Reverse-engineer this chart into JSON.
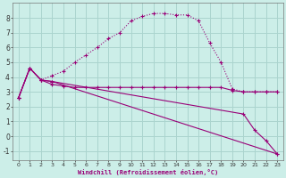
{
  "background_color": "#cceee8",
  "grid_color": "#aad4ce",
  "line_color": "#990077",
  "xlabel": "Windchill (Refroidissement éolien,°C)",
  "xlim": [
    -0.5,
    23.5
  ],
  "ylim": [
    -1.6,
    9.0
  ],
  "yticks": [
    -1,
    0,
    1,
    2,
    3,
    4,
    5,
    6,
    7,
    8
  ],
  "xticks": [
    0,
    1,
    2,
    3,
    4,
    5,
    6,
    7,
    8,
    9,
    10,
    11,
    12,
    13,
    14,
    15,
    16,
    17,
    18,
    19,
    20,
    21,
    22,
    23
  ],
  "line1_x": [
    0,
    1,
    2,
    3,
    4,
    5,
    6,
    7,
    8,
    9,
    10,
    11,
    12,
    13,
    14,
    15,
    16,
    17,
    18,
    19,
    20,
    21,
    22,
    23
  ],
  "line1_y": [
    2.6,
    4.6,
    3.8,
    4.1,
    4.4,
    5.0,
    5.5,
    6.0,
    6.6,
    7.0,
    7.8,
    8.1,
    8.3,
    8.3,
    8.2,
    8.2,
    7.8,
    6.3,
    5.0,
    3.2,
    3.0,
    3.0,
    3.0,
    3.0
  ],
  "line2_x": [
    0,
    1,
    2,
    3,
    4,
    5,
    6,
    7,
    8,
    9,
    10,
    11,
    12,
    13,
    14,
    15,
    16,
    17,
    18,
    19,
    20,
    21,
    22,
    23
  ],
  "line2_y": [
    2.6,
    4.6,
    3.8,
    3.5,
    3.4,
    3.3,
    3.3,
    3.3,
    3.3,
    3.3,
    3.3,
    3.3,
    3.3,
    3.3,
    3.3,
    3.3,
    3.3,
    3.3,
    3.3,
    3.1,
    3.0,
    3.0,
    3.0,
    3.0
  ],
  "line3_x": [
    0,
    1,
    2,
    3,
    23
  ],
  "line3_y": [
    2.6,
    4.6,
    3.8,
    3.7,
    -1.2
  ],
  "line4_x": [
    0,
    1,
    2,
    3,
    20,
    21,
    22,
    23
  ],
  "line4_y": [
    2.6,
    4.6,
    3.8,
    3.7,
    1.5,
    0.4,
    -0.3,
    -1.2
  ]
}
